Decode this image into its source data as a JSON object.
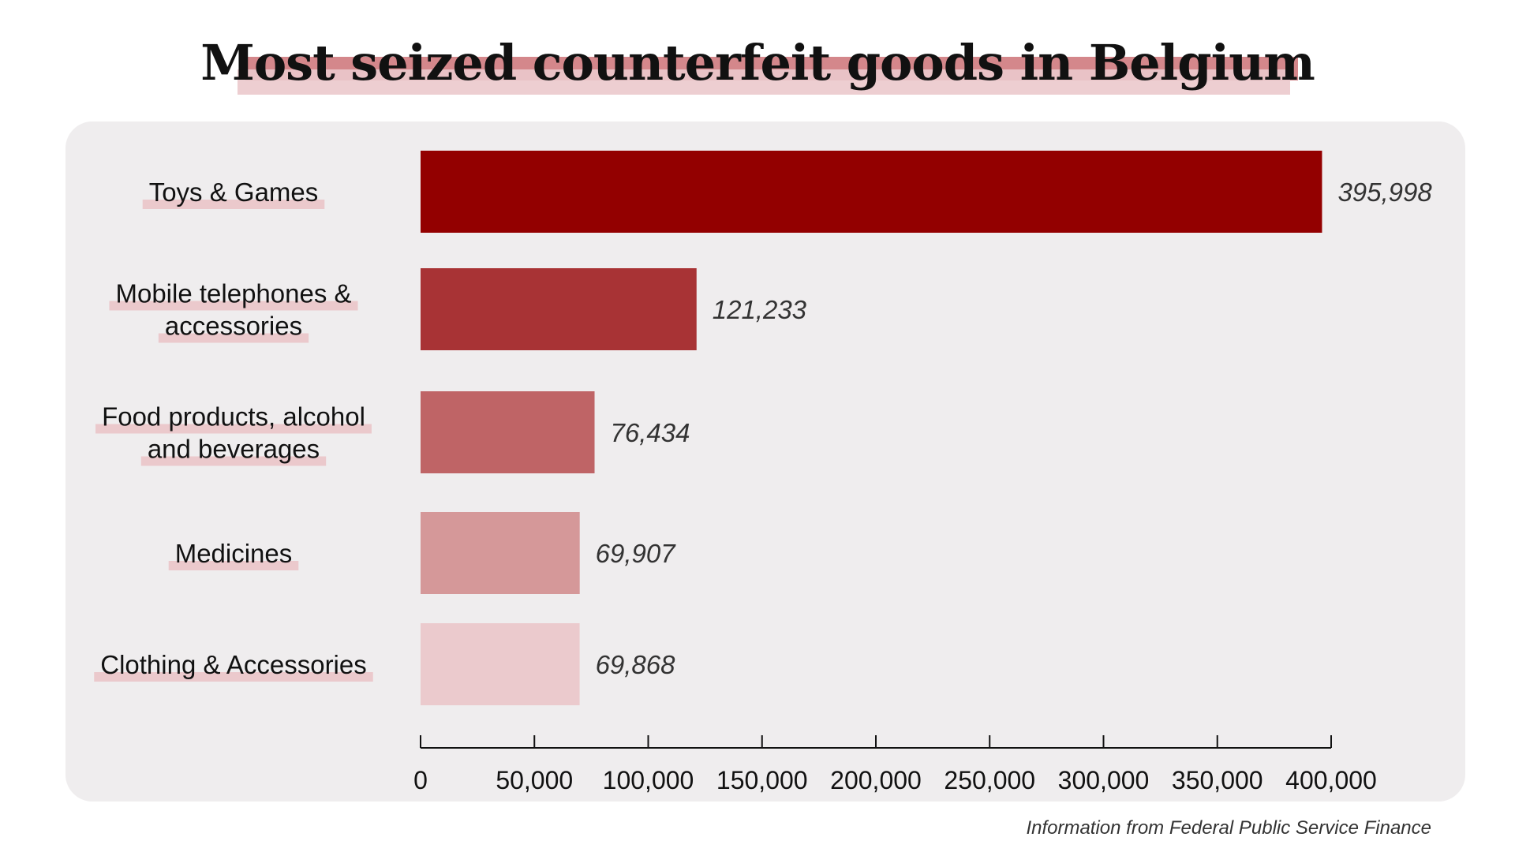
{
  "chart_data": {
    "type": "bar",
    "orientation": "horizontal",
    "title": "Most seized counterfeit goods in Belgium",
    "source": "Information from Federal Public Service Finance",
    "categories": [
      "Toys & Games",
      "Mobile telephones & accessories",
      "Food products, alcohol and beverages",
      "Medicines",
      "Clothing & Accessories"
    ],
    "category_lines": [
      [
        "Toys & Games"
      ],
      [
        "Mobile telephones &",
        "accessories"
      ],
      [
        "Food products, alcohol",
        "and beverages"
      ],
      [
        "Medicines"
      ],
      [
        "Clothing & Accessories"
      ]
    ],
    "values": [
      395998,
      121233,
      76434,
      69907,
      69868
    ],
    "value_labels": [
      "395,998",
      "121,233",
      "76,434",
      "69,907",
      "69,868"
    ],
    "bar_colors": [
      "#930000",
      "#a83335",
      "#bf6466",
      "#d59899",
      "#ebcacd"
    ],
    "xlim": [
      0,
      400000
    ],
    "xticks": [
      0,
      50000,
      100000,
      150000,
      200000,
      250000,
      300000,
      350000,
      400000
    ],
    "xtick_labels": [
      "0",
      "50,000",
      "100,000",
      "150,000",
      "200,000",
      "250,000",
      "300,000",
      "350,000",
      "400,000"
    ],
    "grid": false,
    "legend": "none",
    "label_highlight_color": "#ebc9cc"
  }
}
